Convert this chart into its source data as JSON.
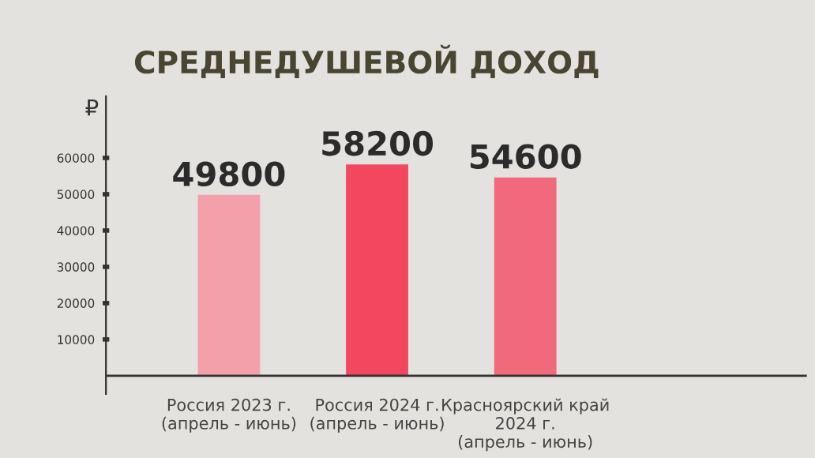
{
  "chart_data": {
    "type": "bar",
    "title": "СРЕДНЕДУШЕВОЙ ДОХОД",
    "ylabel": "₽",
    "categories": [
      "Россия 2023 г.\n(апрель - июнь)",
      "Россия 2024 г.\n(апрель - июнь)",
      "Красноярский край\n2024 г.\n(апрель - июнь)"
    ],
    "values": [
      49800,
      58200,
      54600
    ],
    "colors": [
      "#f4a0ab",
      "#f2475f",
      "#f06a7b"
    ],
    "data_labels": true,
    "ylim": [
      -5000,
      77000
    ],
    "yticks": [
      10000,
      20000,
      30000,
      40000,
      50000,
      60000
    ],
    "grid": false
  }
}
